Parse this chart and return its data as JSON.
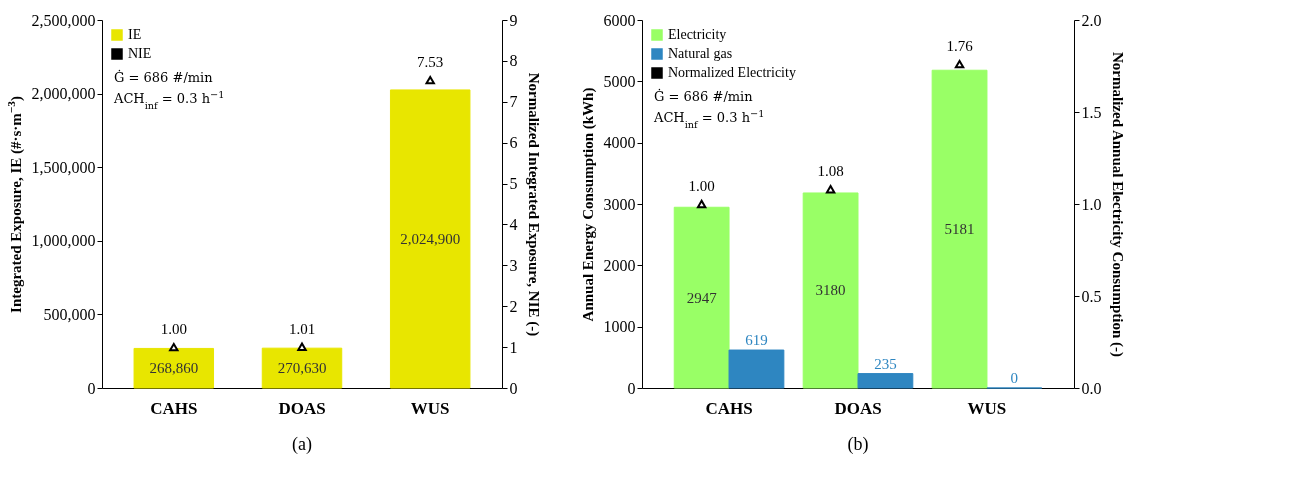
{
  "chart_data": [
    {
      "type": "bar",
      "title": "(a)",
      "categories": [
        "CAHS",
        "DOAS",
        "WUS"
      ],
      "ylabel": "Integrated Exposure, IE (#·s·m$^{−3}$)",
      "y2label": "Normalized Integrated Exposure, NIE (-)",
      "series": [
        {
          "name": "IE",
          "color": "#e8e600",
          "values": [
            268860,
            270630,
            2024900
          ],
          "value_labels": [
            "268,860",
            "270,630",
            "2,024,900"
          ]
        },
        {
          "name": "NIE",
          "type": "scatter",
          "axis": "y2",
          "color": "#000000",
          "values": [
            1.0,
            1.01,
            7.53
          ],
          "value_labels": [
            "1.00",
            "1.01",
            "7.53"
          ]
        }
      ],
      "ylim": [
        0,
        2500000
      ],
      "yticks": [
        0,
        {
          "value": 500000,
          "label": "500,000"
        },
        {
          "value": 1000000,
          "label": "1,000,000"
        },
        {
          "value": 1500000,
          "label": "1,500,000"
        },
        {
          "value": 2000000,
          "label": "2,000,000"
        },
        {
          "value": 2500000,
          "label": "2,500,000"
        }
      ],
      "y2lim": [
        0,
        9
      ],
      "y2ticks": [
        0,
        1,
        2,
        3,
        4,
        5,
        6,
        7,
        8,
        9
      ],
      "annotations": [
        "Ġ = 686 #/min",
        "ACH$_{inf}$ = 0.3 h$^{−1}$"
      ],
      "legend": "top left",
      "marker": "triangle",
      "grid": false
    },
    {
      "type": "bar",
      "title": "(b)",
      "categories": [
        "CAHS",
        "DOAS",
        "WUS"
      ],
      "ylabel": "Annual Energy Consumption (kWh)",
      "y2label": "Normalized Annual Electricity Consumption (-)",
      "series": [
        {
          "name": "Electricity",
          "color": "#99ff66",
          "values": [
            2947,
            3180,
            5181
          ],
          "value_labels": [
            "2947",
            "3180",
            "5181"
          ]
        },
        {
          "name": "Natural gas",
          "color": "#2e86c1",
          "values": [
            619,
            235,
            0
          ],
          "value_labels": [
            "619",
            "235",
            "0"
          ]
        },
        {
          "name": "Normalized Electricity",
          "type": "scatter",
          "axis": "y2",
          "color": "#000000",
          "values": [
            1.0,
            1.08,
            1.76
          ],
          "value_labels": [
            "1.00",
            "1.08",
            "1.76"
          ]
        }
      ],
      "ylim": [
        0,
        6000
      ],
      "yticks": [
        0,
        1000,
        2000,
        3000,
        4000,
        5000,
        6000
      ],
      "y2lim": [
        0,
        2
      ],
      "y2ticks": [
        {
          "value": 0,
          "label": "0.0"
        },
        {
          "value": 0.5,
          "label": "0.5"
        },
        {
          "value": 1,
          "label": "1.0"
        },
        {
          "value": 1.5,
          "label": "1.5"
        },
        {
          "value": 2,
          "label": "2.0"
        }
      ],
      "annotations": [
        "Ġ = 686 #/min",
        "ACH$_{inf}$ = 0.3 h$^{−1}$"
      ],
      "legend": "top left",
      "marker": "triangle",
      "grid": false
    }
  ]
}
